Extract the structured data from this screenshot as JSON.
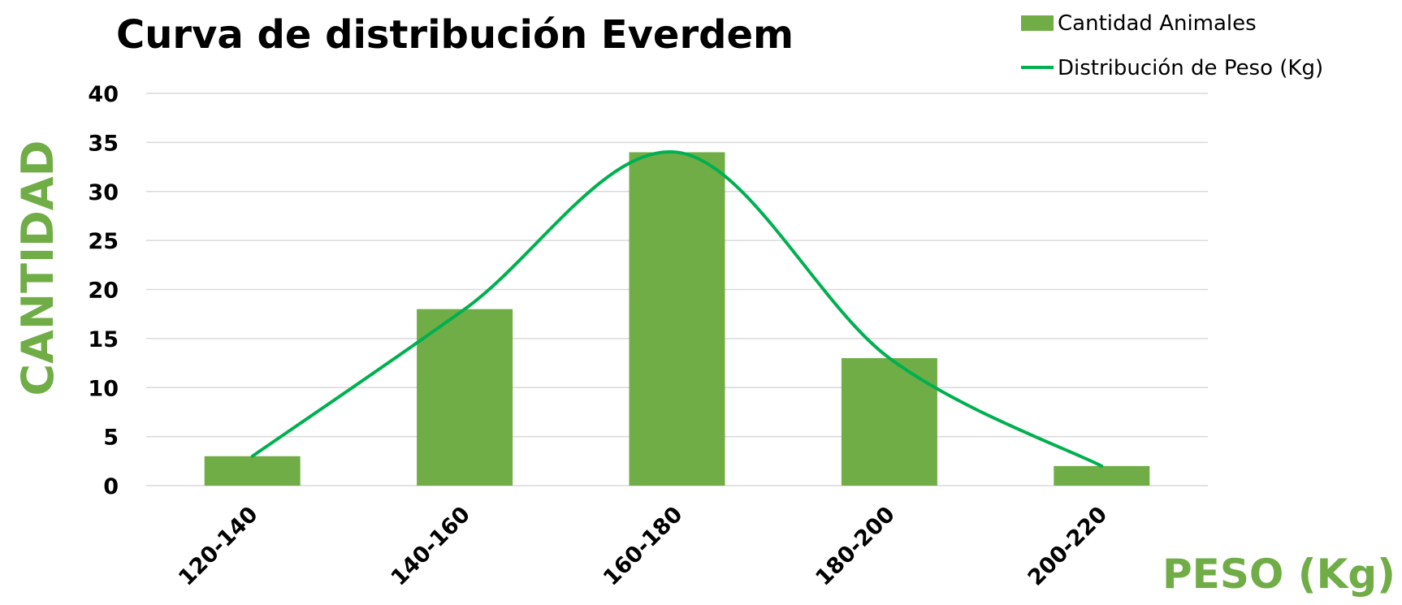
{
  "chart_data": {
    "type": "bar",
    "title": "Curva de distribución Everdem",
    "xlabel": "PESO (Kg)",
    "ylabel": "CANTIDAD",
    "categories": [
      "120-140",
      "140-160",
      "160-180",
      "180-200",
      "200-220"
    ],
    "series": [
      {
        "name": "Cantidad Animales",
        "type": "bar",
        "values": [
          3,
          18,
          34,
          13,
          2
        ]
      },
      {
        "name": "Distribución de Peso (Kg)",
        "type": "line",
        "smooth": true,
        "values": [
          3,
          18,
          34,
          13,
          2
        ]
      }
    ],
    "ylim": [
      0,
      40
    ],
    "yticks": [
      0,
      5,
      10,
      15,
      20,
      25,
      30,
      35,
      40
    ],
    "grid": true,
    "legend_position": "top-right",
    "colors": {
      "bar": "#70ad47",
      "line": "#00b050",
      "axis_title": "#70ad47",
      "grid": "#d9d9d9"
    }
  }
}
